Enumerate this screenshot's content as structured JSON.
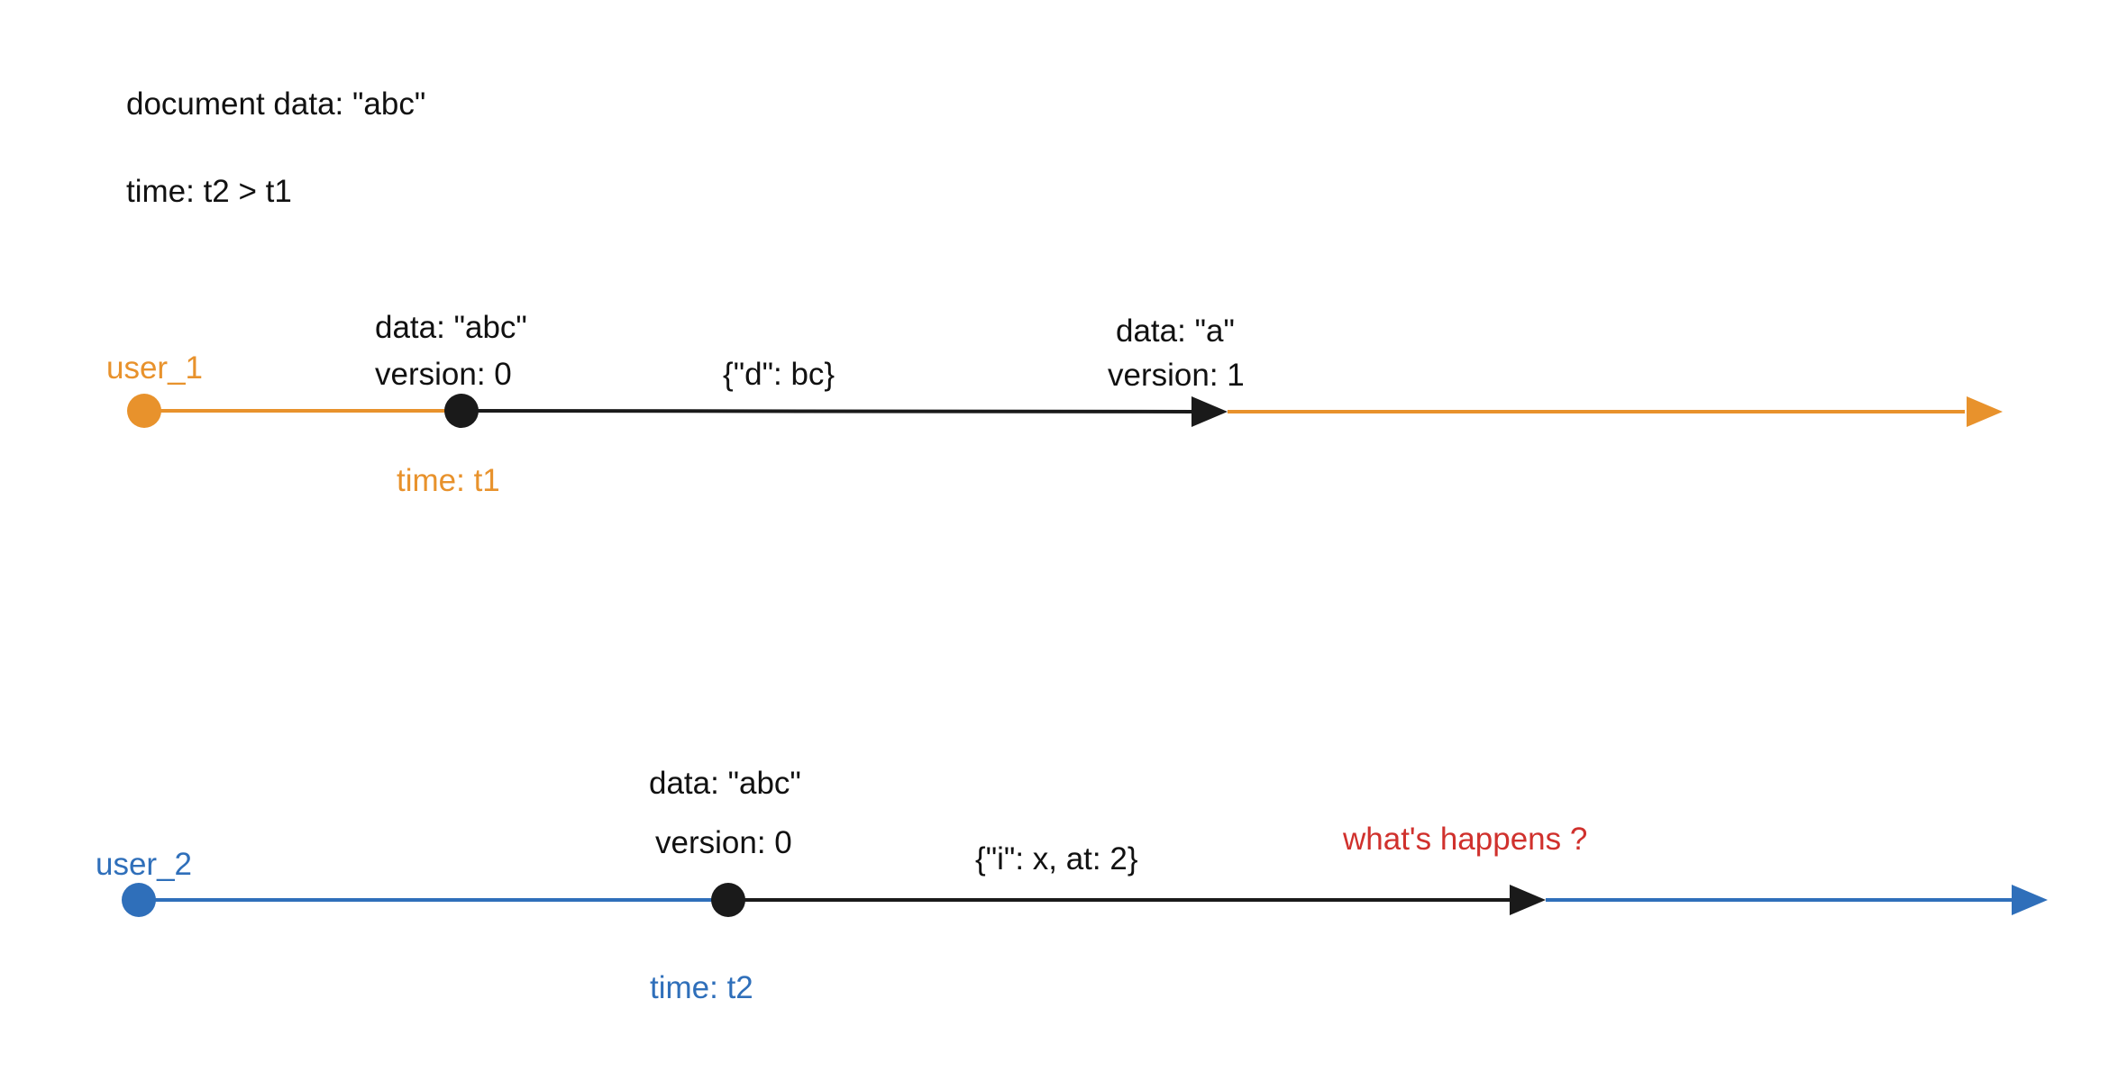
{
  "header": {
    "document_data": "document data: \"abc\"",
    "time_relation": "time: t2 > t1"
  },
  "timeline_1": {
    "user_label": "user_1",
    "start_data": "data: \"abc\"",
    "start_version": "version: 0",
    "time_label": "time: t1",
    "operation": "{\"d\": bc}",
    "end_data": "data: \"a\"",
    "end_version": "version: 1"
  },
  "timeline_2": {
    "user_label": "user_2",
    "start_data": "data: \"abc\"",
    "start_version": "version: 0",
    "time_label": "time: t2",
    "operation": "{\"i\": x, at: 2}",
    "question": "what's happens ?"
  },
  "colors": {
    "user_1": "#e8922c",
    "user_2": "#2f6fba",
    "operation": "#1a1a1a",
    "question": "#d0312d"
  }
}
